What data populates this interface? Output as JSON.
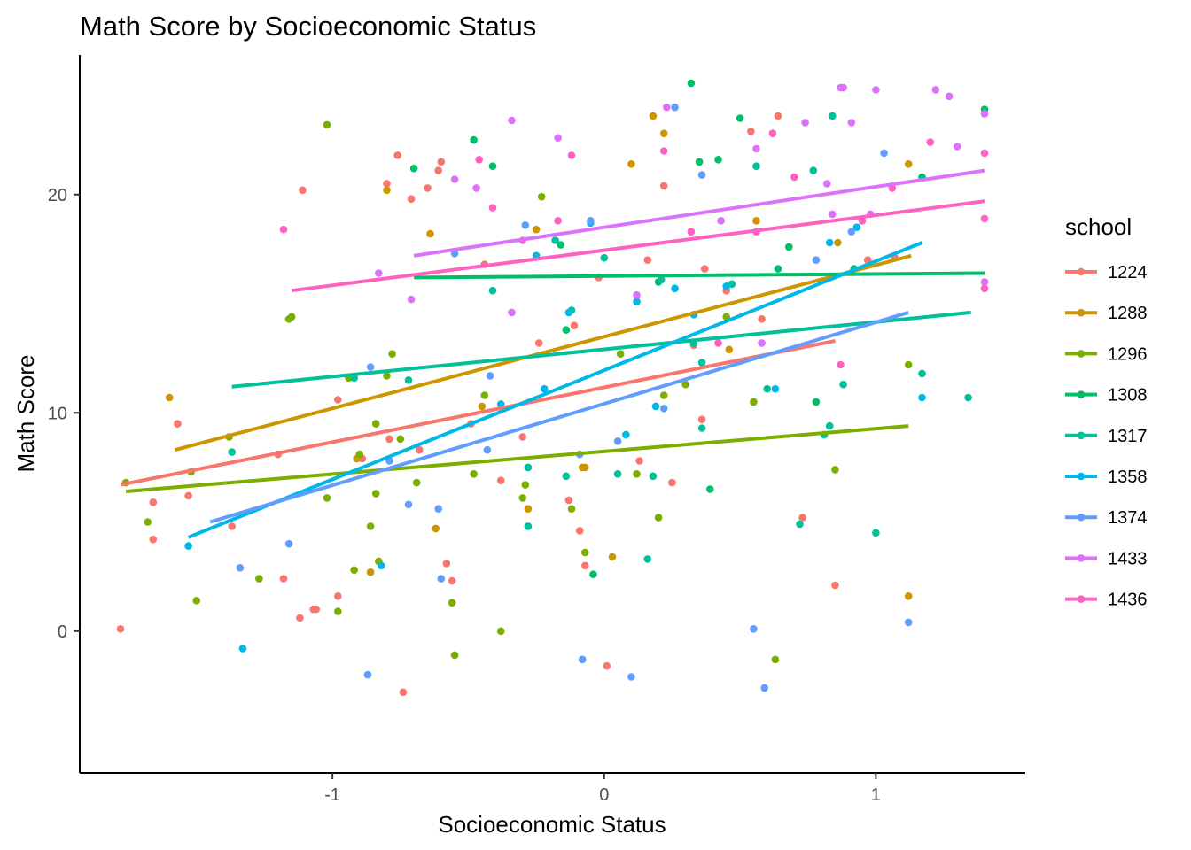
{
  "chart_data": {
    "type": "scatter",
    "title": "Math Score by Socioeconomic Status",
    "xlabel": "Socioeconomic Status",
    "ylabel": "Math Score",
    "xlim": [
      -1.93,
      1.55
    ],
    "ylim": [
      -6.5,
      26.4
    ],
    "x_ticks": [
      {
        "value": -1,
        "label": "-1"
      },
      {
        "value": 0,
        "label": "0"
      },
      {
        "value": 1,
        "label": "1"
      }
    ],
    "y_ticks": [
      {
        "value": 0,
        "label": "0"
      },
      {
        "value": 10,
        "label": "10"
      },
      {
        "value": 20,
        "label": "20"
      }
    ],
    "grid": false,
    "legend": {
      "title": "school",
      "position": "right"
    },
    "series": [
      {
        "name": "1224",
        "color": "#F8766D",
        "fit": {
          "x": [
            -1.78,
            0.85
          ],
          "y": [
            6.7,
            13.3
          ]
        },
        "points": [
          [
            -1.78,
            0.1
          ],
          [
            -1.66,
            4.2
          ],
          [
            -1.66,
            5.9
          ],
          [
            -1.57,
            9.5
          ],
          [
            -1.53,
            6.2
          ],
          [
            -1.37,
            4.8
          ],
          [
            -1.2,
            8.1
          ],
          [
            -1.18,
            2.4
          ],
          [
            -1.12,
            0.6
          ],
          [
            -1.11,
            20.2
          ],
          [
            -1.07,
            1.0
          ],
          [
            -1.06,
            1.0
          ],
          [
            -0.98,
            1.6
          ],
          [
            -0.98,
            10.6
          ],
          [
            -0.89,
            7.9
          ],
          [
            -0.8,
            20.5
          ],
          [
            -0.79,
            8.8
          ],
          [
            -0.76,
            21.8
          ],
          [
            -0.74,
            -2.8
          ],
          [
            -0.71,
            19.8
          ],
          [
            -0.68,
            8.3
          ],
          [
            -0.65,
            20.3
          ],
          [
            -0.61,
            21.1
          ],
          [
            -0.6,
            21.5
          ],
          [
            -0.58,
            3.1
          ],
          [
            -0.56,
            2.3
          ],
          [
            -0.49,
            9.5
          ],
          [
            -0.44,
            16.8
          ],
          [
            -0.38,
            6.9
          ],
          [
            -0.3,
            8.9
          ],
          [
            -0.24,
            13.2
          ],
          [
            -0.13,
            6.0
          ],
          [
            -0.11,
            14.0
          ],
          [
            -0.09,
            4.6
          ],
          [
            -0.07,
            3.0
          ],
          [
            -0.02,
            16.2
          ],
          [
            0.01,
            -1.6
          ],
          [
            0.13,
            7.8
          ],
          [
            0.16,
            17.0
          ],
          [
            0.22,
            20.4
          ],
          [
            0.25,
            6.8
          ],
          [
            0.33,
            13.1
          ],
          [
            0.36,
            9.7
          ],
          [
            0.37,
            16.6
          ],
          [
            0.45,
            15.6
          ],
          [
            0.54,
            22.9
          ],
          [
            0.58,
            14.3
          ],
          [
            0.64,
            23.6
          ],
          [
            0.73,
            5.2
          ],
          [
            0.85,
            2.1
          ],
          [
            0.97,
            17.0
          ],
          [
            1.07,
            17.1
          ]
        ]
      },
      {
        "name": "1288",
        "color": "#CD9600",
        "fit": {
          "x": [
            -1.58,
            1.13
          ],
          "y": [
            8.3,
            17.2
          ]
        },
        "points": [
          [
            -1.6,
            10.7
          ],
          [
            -0.91,
            7.9
          ],
          [
            -0.86,
            2.7
          ],
          [
            -0.8,
            20.2
          ],
          [
            -0.64,
            18.2
          ],
          [
            -0.62,
            4.7
          ],
          [
            -0.45,
            10.3
          ],
          [
            -0.28,
            5.6
          ],
          [
            -0.25,
            18.4
          ],
          [
            -0.08,
            7.5
          ],
          [
            -0.07,
            7.5
          ],
          [
            0.03,
            3.4
          ],
          [
            0.1,
            21.4
          ],
          [
            0.18,
            23.6
          ],
          [
            0.22,
            22.8
          ],
          [
            0.46,
            12.9
          ],
          [
            0.56,
            18.8
          ],
          [
            0.86,
            17.8
          ],
          [
            1.12,
            21.4
          ],
          [
            1.12,
            1.6
          ]
        ]
      },
      {
        "name": "1296",
        "color": "#7CAE00",
        "fit": {
          "x": [
            -1.76,
            1.12
          ],
          "y": [
            6.4,
            9.4
          ]
        },
        "points": [
          [
            -1.76,
            6.8
          ],
          [
            -1.68,
            5.0
          ],
          [
            -1.52,
            7.3
          ],
          [
            -1.5,
            1.4
          ],
          [
            -1.38,
            8.9
          ],
          [
            -1.27,
            2.4
          ],
          [
            -1.16,
            14.3
          ],
          [
            -1.15,
            14.4
          ],
          [
            -1.02,
            23.2
          ],
          [
            -1.02,
            6.1
          ],
          [
            -0.98,
            0.9
          ],
          [
            -0.94,
            11.6
          ],
          [
            -0.92,
            2.8
          ],
          [
            -0.9,
            8.1
          ],
          [
            -0.86,
            4.8
          ],
          [
            -0.84,
            9.5
          ],
          [
            -0.84,
            6.3
          ],
          [
            -0.83,
            3.2
          ],
          [
            -0.8,
            11.7
          ],
          [
            -0.78,
            12.7
          ],
          [
            -0.75,
            8.8
          ],
          [
            -0.69,
            6.8
          ],
          [
            -0.56,
            1.3
          ],
          [
            -0.55,
            -1.1
          ],
          [
            -0.48,
            7.2
          ],
          [
            -0.44,
            10.8
          ],
          [
            -0.38,
            0.0
          ],
          [
            -0.3,
            6.1
          ],
          [
            -0.29,
            6.7
          ],
          [
            -0.23,
            19.9
          ],
          [
            -0.12,
            5.6
          ],
          [
            -0.07,
            3.6
          ],
          [
            0.06,
            12.7
          ],
          [
            0.12,
            7.2
          ],
          [
            0.2,
            5.2
          ],
          [
            0.22,
            10.8
          ],
          [
            0.3,
            11.3
          ],
          [
            0.45,
            14.4
          ],
          [
            0.55,
            10.5
          ],
          [
            0.63,
            -1.3
          ],
          [
            0.85,
            7.4
          ],
          [
            1.12,
            12.2
          ]
        ]
      },
      {
        "name": "1308",
        "color": "#00BE67",
        "fit": {
          "x": [
            -0.7,
            1.4
          ],
          "y": [
            16.2,
            16.4
          ]
        },
        "points": [
          [
            -0.7,
            21.2
          ],
          [
            -0.48,
            22.5
          ],
          [
            -0.41,
            21.3
          ],
          [
            -0.16,
            17.7
          ],
          [
            -0.14,
            13.8
          ],
          [
            -0.04,
            2.6
          ],
          [
            0.2,
            16.0
          ],
          [
            0.32,
            25.1
          ],
          [
            0.35,
            21.5
          ],
          [
            0.39,
            6.5
          ],
          [
            0.42,
            21.6
          ],
          [
            0.5,
            23.5
          ],
          [
            0.64,
            16.6
          ],
          [
            0.68,
            17.6
          ],
          [
            0.78,
            10.5
          ],
          [
            0.92,
            16.6
          ],
          [
            1.17,
            20.8
          ],
          [
            1.4,
            23.9
          ]
        ]
      },
      {
        "name": "1317",
        "color": "#00C19A",
        "fit": {
          "x": [
            -1.37,
            1.35
          ],
          "y": [
            11.2,
            14.6
          ]
        },
        "points": [
          [
            -1.37,
            8.2
          ],
          [
            -0.92,
            11.6
          ],
          [
            -0.72,
            11.5
          ],
          [
            -0.41,
            15.6
          ],
          [
            -0.28,
            4.8
          ],
          [
            -0.28,
            7.5
          ],
          [
            -0.18,
            17.9
          ],
          [
            -0.14,
            7.1
          ],
          [
            -0.12,
            14.7
          ],
          [
            0.0,
            17.1
          ],
          [
            0.05,
            7.2
          ],
          [
            0.16,
            3.3
          ],
          [
            0.18,
            7.1
          ],
          [
            0.21,
            16.1
          ],
          [
            0.33,
            13.2
          ],
          [
            0.36,
            9.3
          ],
          [
            0.36,
            12.3
          ],
          [
            0.47,
            15.9
          ],
          [
            0.56,
            21.3
          ],
          [
            0.6,
            11.1
          ],
          [
            0.72,
            4.9
          ],
          [
            0.77,
            21.1
          ],
          [
            0.81,
            9.0
          ],
          [
            0.83,
            9.4
          ],
          [
            0.84,
            23.6
          ],
          [
            0.88,
            11.3
          ],
          [
            1.0,
            4.5
          ],
          [
            1.17,
            11.8
          ],
          [
            1.34,
            10.7
          ]
        ]
      },
      {
        "name": "1358",
        "color": "#00B8E7",
        "fit": {
          "x": [
            -1.53,
            1.17
          ],
          "y": [
            4.3,
            17.8
          ]
        },
        "points": [
          [
            -1.53,
            3.9
          ],
          [
            -1.33,
            -0.8
          ],
          [
            -0.82,
            3.0
          ],
          [
            -0.38,
            10.4
          ],
          [
            -0.25,
            17.2
          ],
          [
            -0.22,
            11.1
          ],
          [
            -0.13,
            14.6
          ],
          [
            -0.05,
            18.7
          ],
          [
            0.08,
            9.0
          ],
          [
            0.12,
            15.1
          ],
          [
            0.19,
            10.3
          ],
          [
            0.26,
            15.7
          ],
          [
            0.33,
            14.5
          ],
          [
            0.45,
            15.8
          ],
          [
            0.63,
            11.1
          ],
          [
            0.83,
            17.8
          ],
          [
            0.93,
            18.5
          ],
          [
            1.17,
            10.7
          ]
        ]
      },
      {
        "name": "1374",
        "color": "#619CFF",
        "fit": {
          "x": [
            -1.45,
            1.12
          ],
          "y": [
            5.0,
            14.6
          ]
        },
        "points": [
          [
            -1.34,
            2.9
          ],
          [
            -1.16,
            4.0
          ],
          [
            -0.86,
            12.1
          ],
          [
            -0.87,
            -2.0
          ],
          [
            -0.79,
            7.8
          ],
          [
            -0.72,
            5.8
          ],
          [
            -0.6,
            2.4
          ],
          [
            -0.61,
            5.6
          ],
          [
            -0.55,
            17.3
          ],
          [
            -0.43,
            8.3
          ],
          [
            -0.42,
            11.7
          ],
          [
            -0.29,
            18.6
          ],
          [
            -0.09,
            8.1
          ],
          [
            -0.08,
            -1.3
          ],
          [
            -0.05,
            18.8
          ],
          [
            0.05,
            8.7
          ],
          [
            0.1,
            -2.1
          ],
          [
            0.22,
            10.2
          ],
          [
            0.26,
            24.0
          ],
          [
            0.36,
            20.9
          ],
          [
            0.55,
            0.1
          ],
          [
            0.59,
            -2.6
          ],
          [
            0.78,
            17.0
          ],
          [
            0.91,
            18.3
          ],
          [
            1.03,
            21.9
          ],
          [
            1.12,
            0.4
          ]
        ]
      },
      {
        "name": "1433",
        "color": "#DB72FB",
        "fit": {
          "x": [
            -0.7,
            1.4
          ],
          "y": [
            17.2,
            21.1
          ]
        },
        "points": [
          [
            -0.83,
            16.4
          ],
          [
            -0.71,
            15.2
          ],
          [
            -0.55,
            20.7
          ],
          [
            -0.47,
            20.3
          ],
          [
            -0.34,
            14.6
          ],
          [
            -0.34,
            23.4
          ],
          [
            -0.17,
            22.6
          ],
          [
            0.12,
            15.4
          ],
          [
            0.23,
            24.0
          ],
          [
            0.43,
            18.8
          ],
          [
            0.56,
            22.1
          ],
          [
            0.58,
            13.2
          ],
          [
            0.74,
            23.3
          ],
          [
            0.82,
            20.5
          ],
          [
            0.84,
            19.1
          ],
          [
            0.87,
            24.9
          ],
          [
            0.88,
            24.9
          ],
          [
            0.91,
            23.3
          ],
          [
            0.98,
            19.1
          ],
          [
            1.0,
            24.8
          ],
          [
            1.22,
            24.8
          ],
          [
            1.27,
            24.5
          ],
          [
            1.3,
            22.2
          ],
          [
            1.4,
            16.0
          ],
          [
            1.4,
            23.7
          ]
        ]
      },
      {
        "name": "1436",
        "color": "#FF61C3",
        "fit": {
          "x": [
            -1.15,
            1.4
          ],
          "y": [
            15.6,
            19.7
          ]
        },
        "points": [
          [
            -1.18,
            18.4
          ],
          [
            -0.46,
            21.6
          ],
          [
            -0.41,
            19.4
          ],
          [
            -0.3,
            17.9
          ],
          [
            -0.17,
            18.8
          ],
          [
            -0.12,
            21.8
          ],
          [
            0.22,
            22.0
          ],
          [
            0.32,
            18.3
          ],
          [
            0.42,
            13.2
          ],
          [
            0.56,
            18.3
          ],
          [
            0.62,
            22.8
          ],
          [
            0.7,
            20.8
          ],
          [
            0.87,
            12.2
          ],
          [
            0.95,
            18.8
          ],
          [
            1.06,
            20.3
          ],
          [
            1.2,
            22.4
          ],
          [
            1.4,
            21.9
          ],
          [
            1.4,
            18.9
          ],
          [
            1.4,
            15.7
          ]
        ]
      }
    ]
  }
}
